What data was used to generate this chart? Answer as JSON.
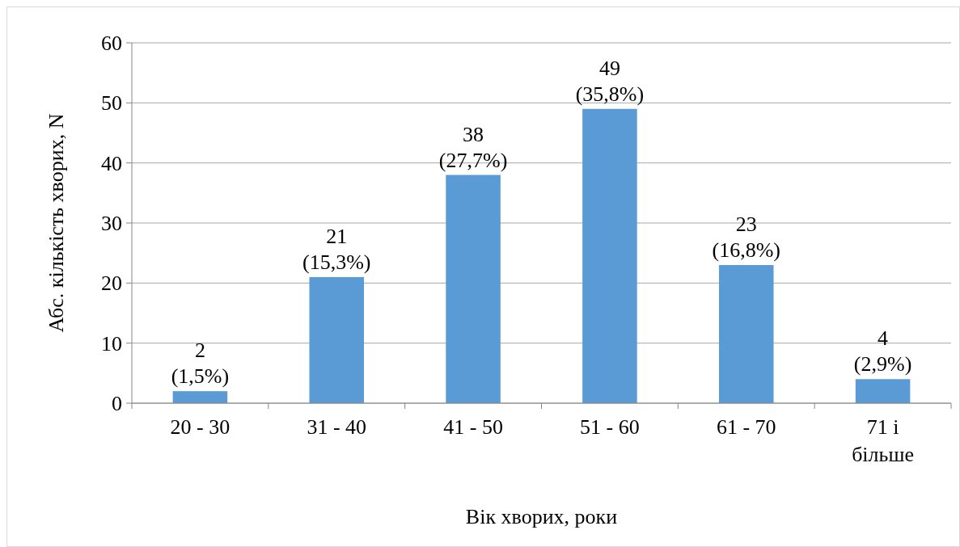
{
  "chart_data": {
    "type": "bar",
    "xlabel": "Вік хворих, роки",
    "ylabel": "Абс. кількість хворих, N",
    "categories": [
      "20 - 30",
      "31 - 40",
      "41 - 50",
      "51 - 60",
      "61 - 70",
      "71 і більше"
    ],
    "values": [
      2,
      21,
      38,
      49,
      23,
      4
    ],
    "value_labels": [
      "2\n(1,5%)",
      "21\n(15,3%)",
      "38\n(27,7%)",
      "49\n(35,8%)",
      "23\n(16,8%)",
      "4\n(2,9%)"
    ],
    "color": "#5b9bd5",
    "ylim": [
      0,
      60
    ],
    "yticks": [
      0,
      10,
      20,
      30,
      40,
      50,
      60
    ],
    "grid": "y"
  }
}
